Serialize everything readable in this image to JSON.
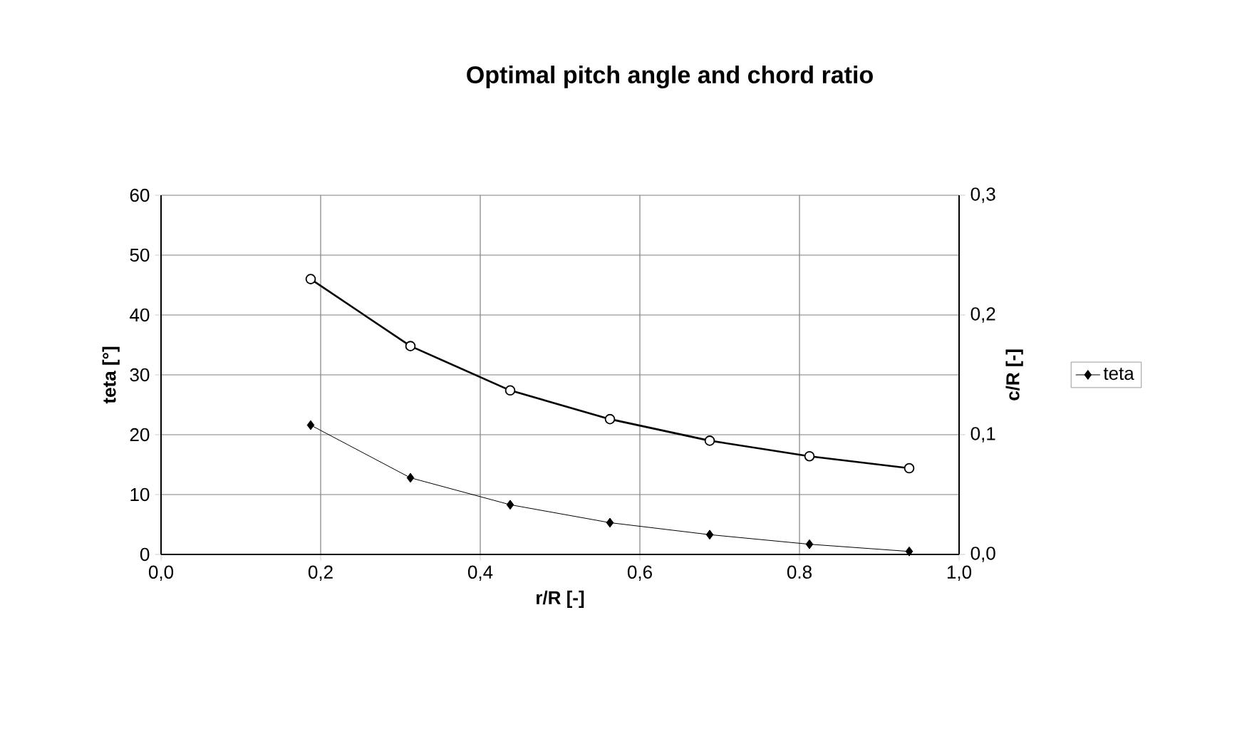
{
  "chart_data": {
    "type": "line",
    "title": "Optimal pitch angle and chord ratio",
    "xlabel": "r/R [-]",
    "ylabel": "teta [°]",
    "y2label": "c/R [-]",
    "x": [
      0.1875,
      0.3125,
      0.4375,
      0.5625,
      0.6875,
      0.8125,
      0.9375
    ],
    "series": [
      {
        "name": "teta",
        "color": "#000000",
        "marker": "diamond",
        "values": [
          21.6,
          12.8,
          8.3,
          5.3,
          3.3,
          1.7,
          0.5
        ]
      },
      {
        "color": "#000000",
        "marker": "circle",
        "axis": "y2",
        "values": [
          0.23,
          0.174,
          0.137,
          0.113,
          0.095,
          0.082,
          0.072
        ]
      }
    ],
    "xlim": [
      0,
      1
    ],
    "xticks": [
      {
        "value": 0,
        "label": "0,0"
      },
      {
        "value": 0.2,
        "label": "0,2"
      },
      {
        "value": 0.4,
        "label": "0,4"
      },
      {
        "value": 0.6,
        "label": "0,6"
      },
      {
        "value": 0.8,
        "label": "0.8"
      },
      {
        "value": 1,
        "label": "1,0"
      }
    ],
    "ylim": [
      0,
      60
    ],
    "yticks": [
      0,
      10,
      20,
      30,
      40,
      50,
      60
    ],
    "y2lim": [
      0,
      0.3
    ],
    "y2ticks": [
      {
        "value": 0,
        "label": "0,0"
      },
      {
        "value": 0.1,
        "label": "0,1"
      },
      {
        "value": 0.2,
        "label": "0,2"
      },
      {
        "value": 0.3,
        "label": "0,3"
      }
    ],
    "grid": true,
    "legend": "right",
    "line_style": "solid"
  }
}
